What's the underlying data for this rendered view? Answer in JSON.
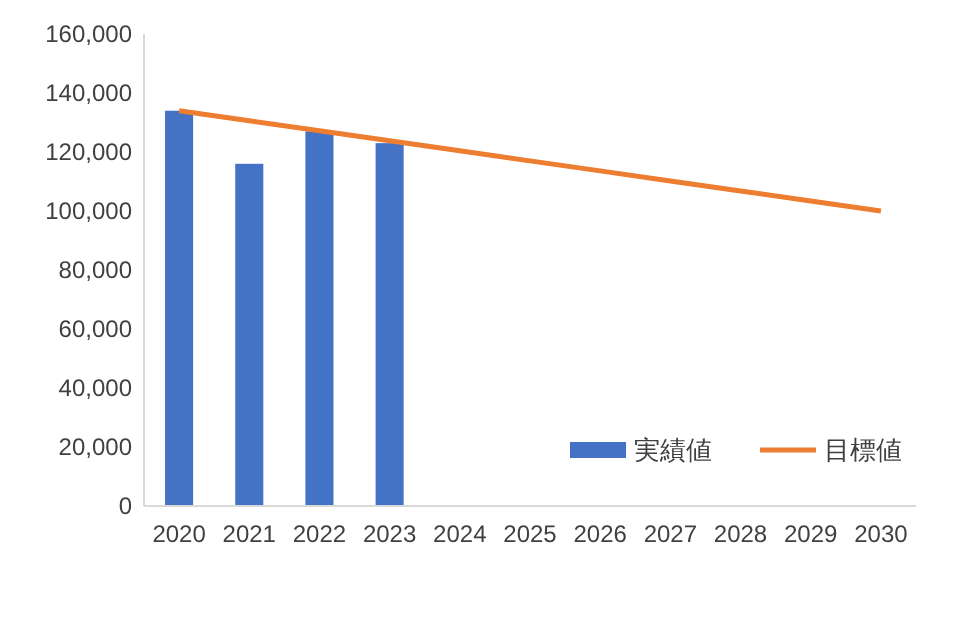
{
  "chart_data": {
    "type": "bar",
    "categories": [
      "2020",
      "2021",
      "2022",
      "2023",
      "2024",
      "2025",
      "2026",
      "2027",
      "2028",
      "2029",
      "2030"
    ],
    "series": [
      {
        "name": "実績値",
        "color": "#4472c4",
        "values": [
          134000,
          116000,
          127000,
          123000,
          null,
          null,
          null,
          null,
          null,
          null,
          null
        ]
      },
      {
        "name": "目標値",
        "type": "line",
        "color": "#ed7d31",
        "values": [
          134000,
          130600,
          127200,
          123800,
          120400,
          117000,
          113600,
          110200,
          106800,
          103400,
          100000
        ]
      }
    ],
    "ylim": [
      0,
      160000
    ],
    "yticks": [
      {
        "value": 0,
        "label": "0"
      },
      {
        "value": 20000,
        "label": "20,000"
      },
      {
        "value": 40000,
        "label": "40,000"
      },
      {
        "value": 60000,
        "label": "60,000"
      },
      {
        "value": 80000,
        "label": "80,000"
      },
      {
        "value": 100000,
        "label": "100,000"
      },
      {
        "value": 120000,
        "label": "120,000"
      },
      {
        "value": 140000,
        "label": "140,000"
      },
      {
        "value": 160000,
        "label": "160,000"
      }
    ],
    "legend": "bottom right",
    "marker": "none"
  }
}
